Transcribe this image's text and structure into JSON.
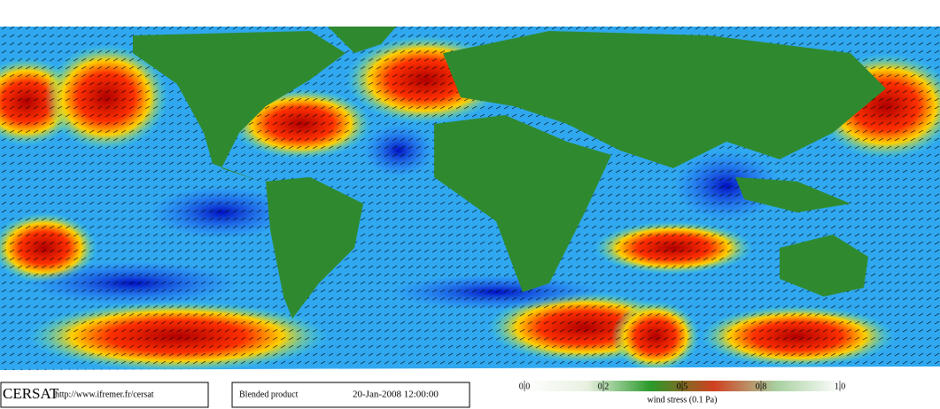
{
  "logo": "CERSAT",
  "url": "http://www.ifremer.fr/cersat",
  "product": "Blended product",
  "datetime": "20-Jan-2008 12:00:00",
  "colorbar": {
    "label": "wind stress (0.1 Pa)",
    "ticks": [
      {
        "value": 0,
        "label": "0.0"
      },
      0.2,
      0.5,
      0.8,
      {
        "value": 1,
        "label": "1.0"
      }
    ],
    "colors": [
      "#ffffff",
      "#e8f0e0",
      "#2a9a2a",
      "#d04020",
      "#a8d0a0",
      "#ffffff"
    ]
  }
}
